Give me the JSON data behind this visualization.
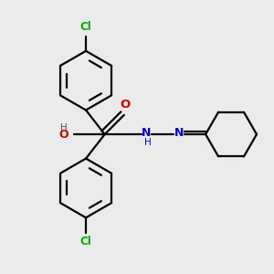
{
  "bg_color": "#ebebeb",
  "bond_color": "#000000",
  "cl_color": "#00aa00",
  "o_color": "#cc0000",
  "n_color": "#0000cc",
  "line_width": 1.6,
  "figsize": [
    3.0,
    3.0
  ],
  "dpi": 100,
  "xlim": [
    0,
    10
  ],
  "ylim": [
    0,
    10
  ]
}
